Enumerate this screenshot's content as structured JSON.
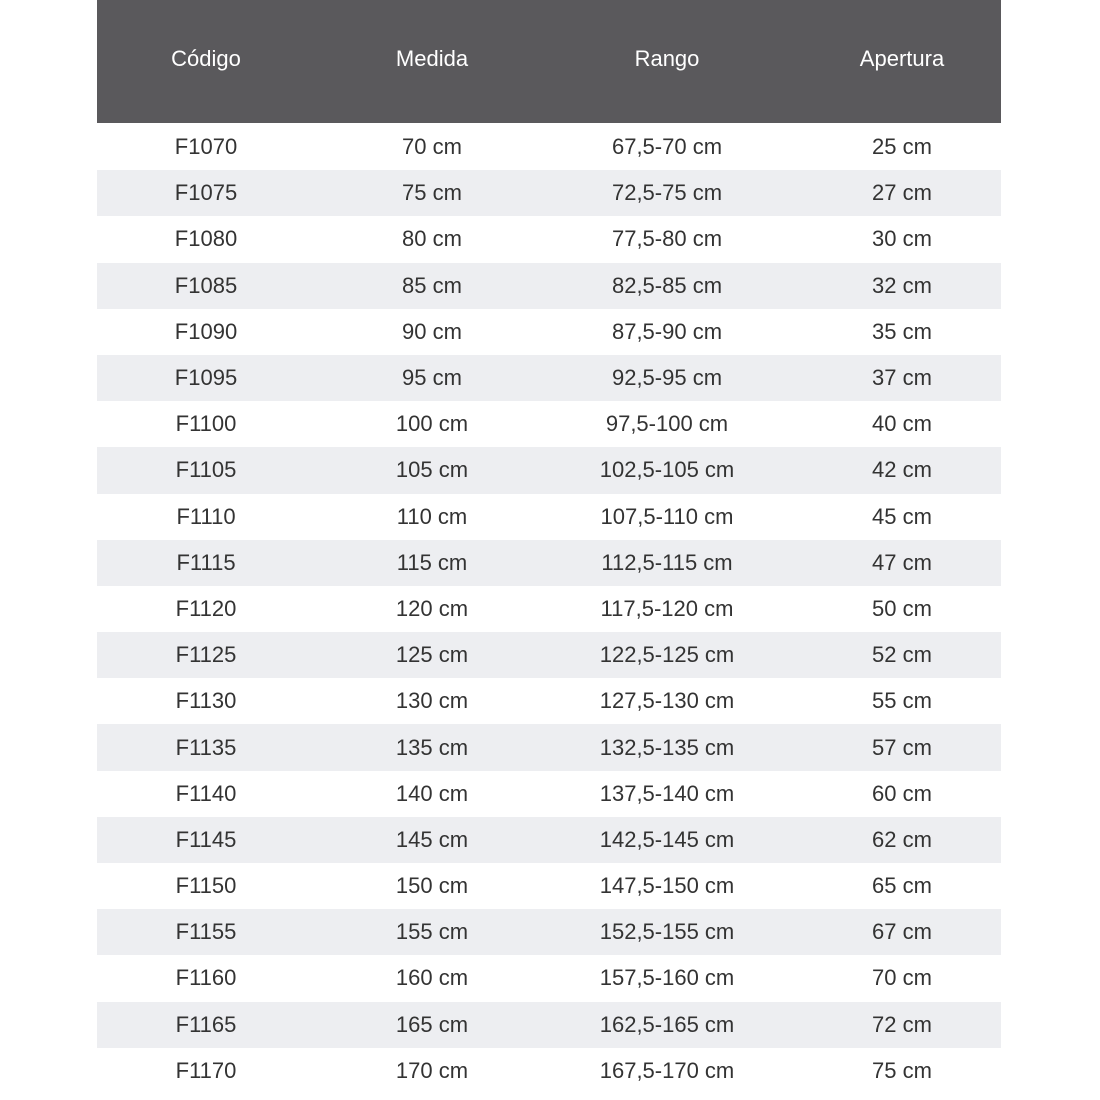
{
  "header": [
    "Código",
    "Medida",
    "Rango",
    "Apertura"
  ],
  "rows": [
    [
      "F1070",
      "70 cm",
      "67,5-70 cm",
      "25 cm"
    ],
    [
      "F1075",
      "75 cm",
      "72,5-75 cm",
      "27 cm"
    ],
    [
      "F1080",
      "80 cm",
      "77,5-80 cm",
      "30 cm"
    ],
    [
      "F1085",
      "85 cm",
      "82,5-85 cm",
      "32 cm"
    ],
    [
      "F1090",
      "90 cm",
      "87,5-90 cm",
      "35 cm"
    ],
    [
      "F1095",
      "95 cm",
      "92,5-95 cm",
      "37 cm"
    ],
    [
      "F1100",
      "100 cm",
      "97,5-100 cm",
      "40 cm"
    ],
    [
      "F1105",
      "105 cm",
      "102,5-105 cm",
      "42 cm"
    ],
    [
      "F1110",
      "110 cm",
      "107,5-110 cm",
      "45 cm"
    ],
    [
      "F1115",
      "115 cm",
      "112,5-115 cm",
      "47 cm"
    ],
    [
      "F1120",
      "120 cm",
      "117,5-120 cm",
      "50 cm"
    ],
    [
      "F1125",
      "125 cm",
      "122,5-125 cm",
      "52 cm"
    ],
    [
      "F1130",
      "130 cm",
      "127,5-130 cm",
      "55 cm"
    ],
    [
      "F1135",
      "135 cm",
      "132,5-135 cm",
      "57 cm"
    ],
    [
      "F1140",
      "140 cm",
      "137,5-140 cm",
      "60 cm"
    ],
    [
      "F1145",
      "145 cm",
      "142,5-145 cm",
      "62 cm"
    ],
    [
      "F1150",
      "150 cm",
      "147,5-150 cm",
      "65 cm"
    ],
    [
      "F1155",
      "155 cm",
      "152,5-155 cm",
      "67 cm"
    ],
    [
      "F1160",
      "160 cm",
      "157,5-160 cm",
      "70 cm"
    ],
    [
      "F1165",
      "165 cm",
      "162,5-165 cm",
      "72 cm"
    ],
    [
      "F1170",
      "170 cm",
      "167,5-170 cm",
      "75 cm"
    ]
  ],
  "colors": {
    "header_bg": "#5a595c",
    "header_text": "#ffffff",
    "stripe": "#edeef1",
    "text": "#333333"
  }
}
